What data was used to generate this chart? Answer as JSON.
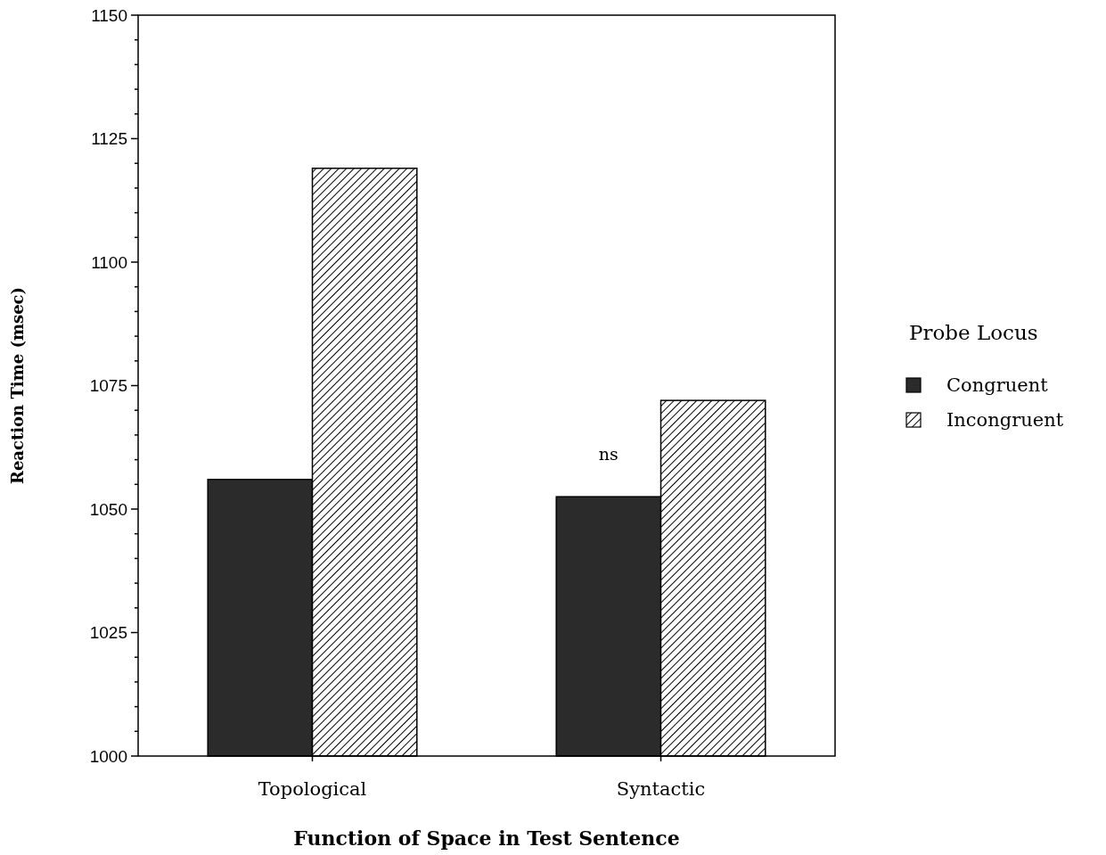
{
  "chart_data": {
    "type": "bar",
    "xlabel": "Function of Space in Test Sentence",
    "ylabel": "Reaction Time (msec)",
    "legend_title": "Probe Locus",
    "legend": "right",
    "categories": [
      "Topological",
      "Syntactic"
    ],
    "series": [
      {
        "name": "Congruent",
        "color": "#2b2b2b",
        "values": [
          1056,
          1052.5
        ]
      },
      {
        "name": "Incongruent",
        "color": "#000000",
        "values": [
          1119,
          1072
        ]
      }
    ],
    "ylim": [
      1000,
      1150
    ],
    "yticks": [
      1000,
      {
        "value": 1005,
        "label": null
      },
      {
        "value": 1010,
        "label": null
      },
      {
        "value": 1015,
        "label": null
      },
      {
        "value": 1020,
        "label": null
      },
      1025,
      {
        "value": 1030,
        "label": null
      },
      {
        "value": 1035,
        "label": null
      },
      {
        "value": 1040,
        "label": null
      },
      {
        "value": 1045,
        "label": null
      },
      1050,
      {
        "value": 1055,
        "label": null
      },
      {
        "value": 1060,
        "label": null
      },
      {
        "value": 1065,
        "label": null
      },
      {
        "value": 1070,
        "label": null
      },
      1075,
      {
        "value": 1080,
        "label": null
      },
      {
        "value": 1085,
        "label": null
      },
      {
        "value": 1090,
        "label": null
      },
      {
        "value": 1095,
        "label": null
      },
      1100,
      {
        "value": 1105,
        "label": null
      },
      {
        "value": 1110,
        "label": null
      },
      {
        "value": 1115,
        "label": null
      },
      {
        "value": 1120,
        "label": null
      },
      1125,
      {
        "value": 1130,
        "label": null
      },
      {
        "value": 1135,
        "label": null
      },
      {
        "value": 1140,
        "label": null
      },
      {
        "value": 1145,
        "label": null
      },
      1150
    ],
    "annotations": [
      {
        "text": "ns",
        "x": "Syntactic",
        "y": 1060
      }
    ]
  }
}
